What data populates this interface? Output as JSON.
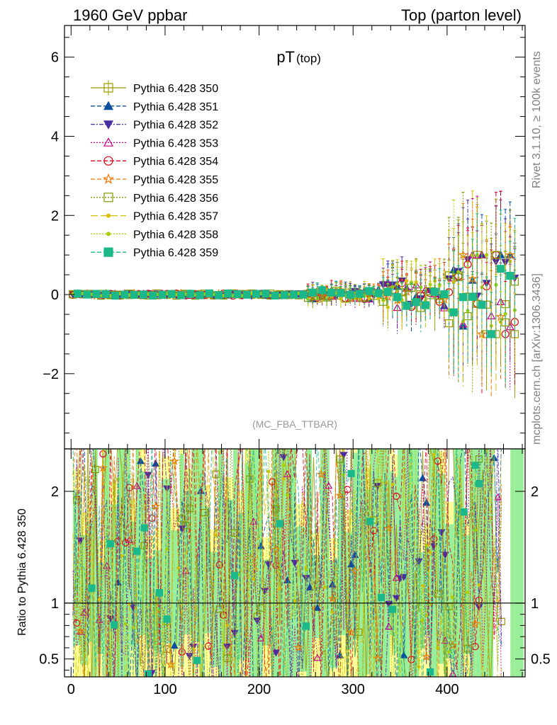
{
  "header": {
    "left": "1960 GeV ppbar",
    "right": "Top (parton level)"
  },
  "side_labels": {
    "rivet": "Rivet 3.1.10, ≥ 100k events",
    "mcplots": "mcplots.cern.ch [arXiv:1306.3436]"
  },
  "chart_data": [
    {
      "type": "scatter",
      "title_main": "pT",
      "title_sub": "(top)",
      "analysis": "(MC_FBA_TTBAR)",
      "xlim": [
        -7,
        483
      ],
      "ylim": [
        -3.9,
        6.8
      ],
      "yticks": [
        -2,
        0,
        2,
        4,
        6
      ],
      "grid": false,
      "legend_position": "top-left",
      "series": [
        {
          "name": "Pythia 6.428 350",
          "color": "#999900",
          "marker": "open-square",
          "dash": "solid"
        },
        {
          "name": "Pythia 6.428 351",
          "color": "#0b4ea2",
          "marker": "filled-triangle-up",
          "dash": "dashed"
        },
        {
          "name": "Pythia 6.428 352",
          "color": "#4b2ca0",
          "marker": "filled-triangle-down",
          "dash": "dashdot"
        },
        {
          "name": "Pythia 6.428 353",
          "color": "#c0008c",
          "marker": "open-triangle-up",
          "dash": "dotted"
        },
        {
          "name": "Pythia 6.428 354",
          "color": "#e0001a",
          "marker": "open-circle",
          "dash": "dashed"
        },
        {
          "name": "Pythia 6.428 355",
          "color": "#f07800",
          "marker": "open-star",
          "dash": "dashed"
        },
        {
          "name": "Pythia 6.428 356",
          "color": "#7f9900",
          "marker": "open-square",
          "dash": "dotted"
        },
        {
          "name": "Pythia 6.428 357",
          "color": "#d4c000",
          "marker": "small-dot",
          "dash": "dashlong"
        },
        {
          "name": "Pythia 6.428 358",
          "color": "#a8d000",
          "marker": "small-dot",
          "dash": "dotted"
        },
        {
          "name": "Pythia 6.428 359",
          "color": "#1bb88a",
          "marker": "filled-square",
          "dash": "dashed"
        }
      ]
    },
    {
      "type": "scatter",
      "ylabel": "Ratio to Pythia 6.428 350",
      "xlim": [
        -7,
        483
      ],
      "ylim": [
        0.34,
        2.38
      ],
      "xticks": [
        0,
        100,
        200,
        300,
        400
      ],
      "yticks": [
        0.5,
        1,
        2
      ],
      "reference_line": 1,
      "band_colors": {
        "outer": "#ffff99",
        "inner": "#99ee99"
      }
    }
  ]
}
